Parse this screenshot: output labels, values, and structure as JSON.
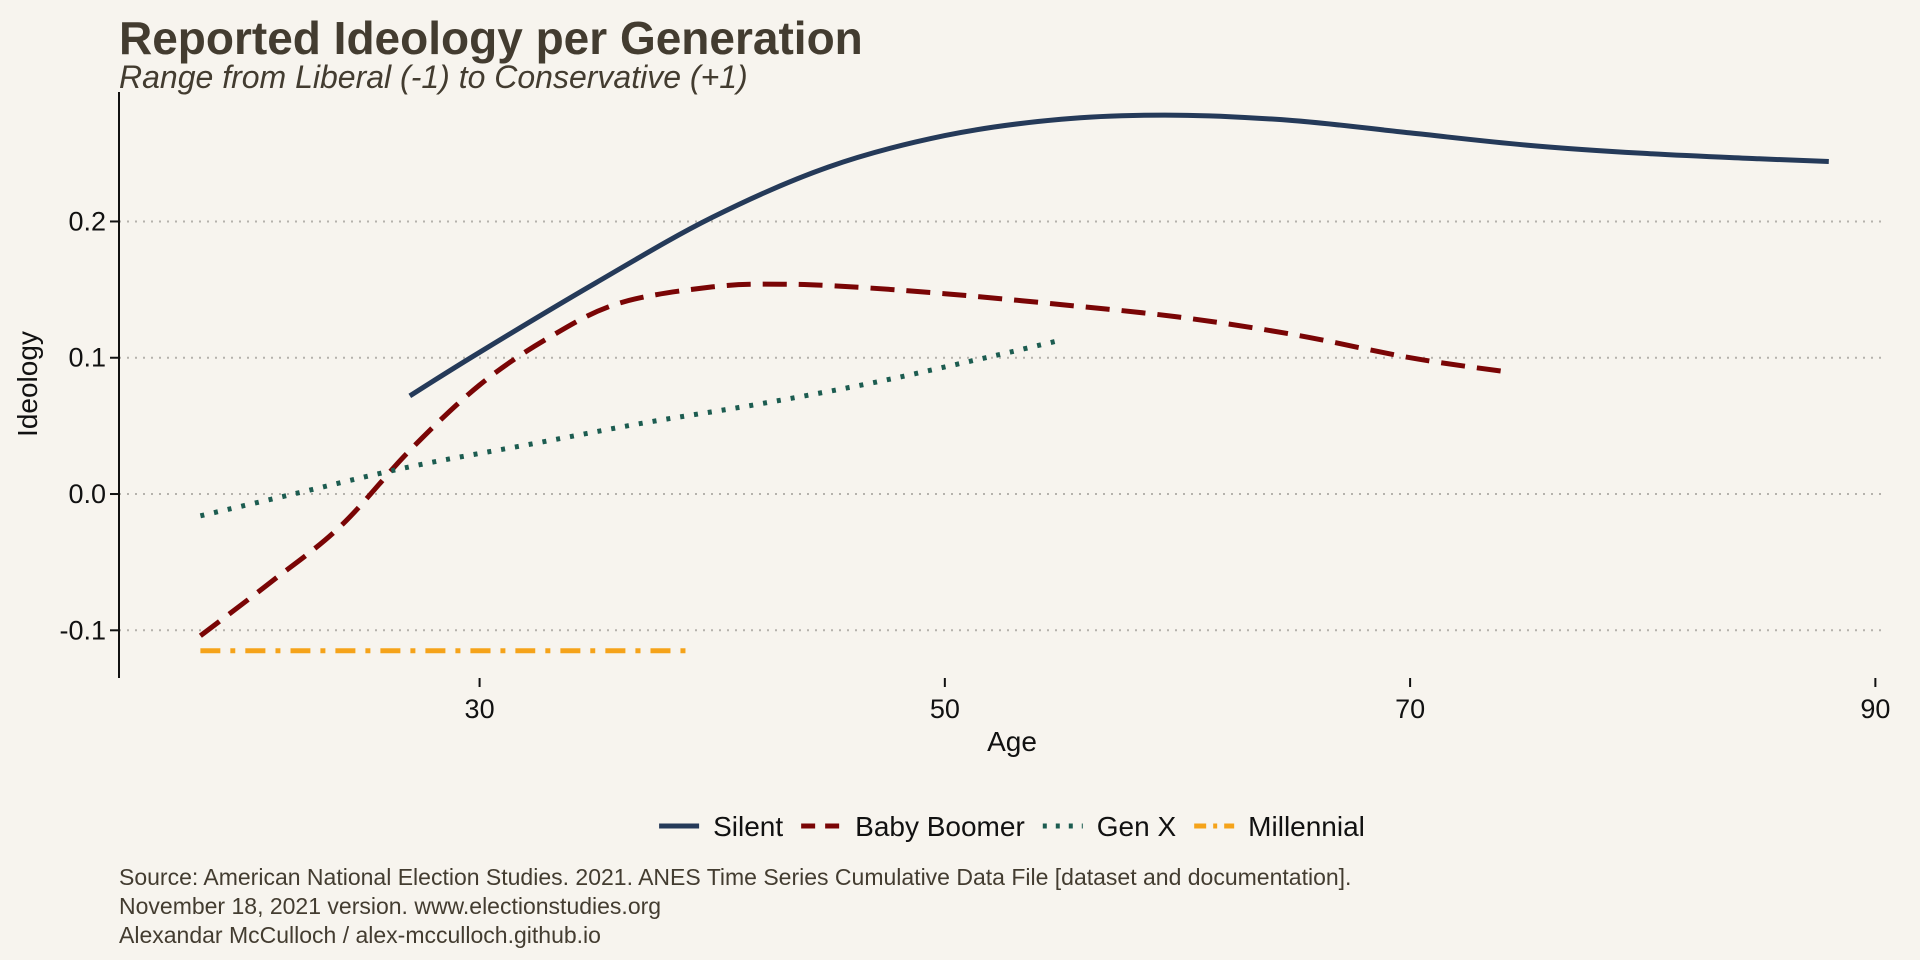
{
  "chart_data": {
    "type": "line",
    "title": "Reported Ideology per Generation",
    "subtitle": "Range from Liberal (-1) to Conservative (+1)",
    "xlabel": "Age",
    "ylabel": "Ideology",
    "xlim": [
      14.5,
      90.5
    ],
    "ylim": [
      -0.135,
      0.295
    ],
    "x_ticks": [
      30,
      50,
      70,
      90
    ],
    "x_tick_labels": [
      "30",
      "50",
      "70",
      "90"
    ],
    "y_ticks": [
      -0.1,
      0.0,
      0.1,
      0.2
    ],
    "y_tick_labels": [
      "-0.1",
      "0.0",
      "0.1",
      "0.2"
    ],
    "grid": "horizontal dotted",
    "legend_position": "bottom",
    "series": [
      {
        "name": "Silent",
        "color": "#253a59",
        "dash": "solid",
        "x": [
          27,
          30,
          35,
          40,
          45,
          50,
          55,
          60,
          65,
          70,
          75,
          80,
          85,
          88
        ],
        "y": [
          0.072,
          0.104,
          0.155,
          0.203,
          0.24,
          0.263,
          0.275,
          0.278,
          0.274,
          0.265,
          0.256,
          0.25,
          0.246,
          0.244
        ]
      },
      {
        "name": "Baby Boomer",
        "color": "#7a0505",
        "dash": "dashed",
        "x": [
          18,
          21,
          24,
          27,
          30,
          33,
          36,
          40,
          43,
          46,
          50,
          55,
          60,
          65,
          70,
          74
        ],
        "y": [
          -0.104,
          -0.065,
          -0.024,
          0.032,
          0.08,
          0.115,
          0.14,
          0.152,
          0.154,
          0.152,
          0.147,
          0.139,
          0.13,
          0.117,
          0.1,
          0.09
        ]
      },
      {
        "name": "Gen X",
        "color": "#1c5c50",
        "dash": "dotted",
        "x": [
          18,
          22,
          27,
          32,
          37,
          42,
          47,
          52,
          55
        ],
        "y": [
          -0.016,
          0.0,
          0.02,
          0.036,
          0.052,
          0.066,
          0.082,
          0.101,
          0.113
        ]
      },
      {
        "name": "Millennial",
        "color": "#f5a31a",
        "dash": "dashdot",
        "x": [
          18,
          22,
          26,
          30,
          34,
          39
        ],
        "y": [
          -0.115,
          -0.115,
          -0.115,
          -0.115,
          -0.115,
          -0.115
        ]
      }
    ],
    "caption": [
      "Source: American National Election Studies. 2021. ANES Time Series Cumulative Data File [dataset and documentation].",
      "November 18, 2021 version. www.electionstudies.org",
      "Alexandar McCulloch / alex-mcculloch.github.io"
    ]
  }
}
